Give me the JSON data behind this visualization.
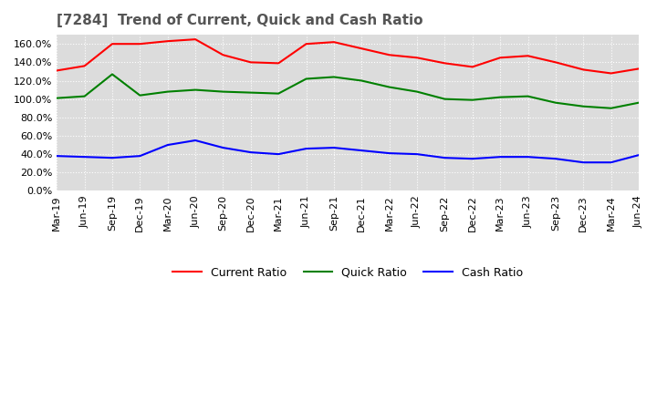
{
  "title": "[7284]  Trend of Current, Quick and Cash Ratio",
  "x_labels": [
    "Mar-19",
    "Jun-19",
    "Sep-19",
    "Dec-19",
    "Mar-20",
    "Jun-20",
    "Sep-20",
    "Dec-20",
    "Mar-21",
    "Jun-21",
    "Sep-21",
    "Dec-21",
    "Mar-22",
    "Jun-22",
    "Sep-22",
    "Dec-22",
    "Mar-23",
    "Jun-23",
    "Sep-23",
    "Dec-23",
    "Mar-24",
    "Jun-24"
  ],
  "current_ratio": [
    131,
    136,
    160,
    160,
    163,
    165,
    148,
    140,
    139,
    160,
    162,
    155,
    148,
    145,
    139,
    135,
    145,
    147,
    140,
    132,
    128,
    133
  ],
  "quick_ratio": [
    101,
    103,
    127,
    104,
    108,
    110,
    108,
    107,
    106,
    122,
    124,
    120,
    113,
    108,
    100,
    99,
    102,
    103,
    96,
    92,
    90,
    96
  ],
  "cash_ratio": [
    38,
    37,
    36,
    38,
    50,
    55,
    47,
    42,
    40,
    46,
    47,
    44,
    41,
    40,
    36,
    35,
    37,
    37,
    35,
    31,
    31,
    39
  ],
  "ylim": [
    0,
    170
  ],
  "yticks": [
    0,
    20,
    40,
    60,
    80,
    100,
    120,
    140,
    160
  ],
  "current_color": "#FF0000",
  "quick_color": "#008000",
  "cash_color": "#0000FF",
  "bg_color": "#FFFFFF",
  "plot_bg_color": "#DCDCDC",
  "grid_color": "#FFFFFF",
  "legend_labels": [
    "Current Ratio",
    "Quick Ratio",
    "Cash Ratio"
  ],
  "title_fontsize": 11,
  "label_fontsize": 9,
  "tick_fontsize": 8
}
